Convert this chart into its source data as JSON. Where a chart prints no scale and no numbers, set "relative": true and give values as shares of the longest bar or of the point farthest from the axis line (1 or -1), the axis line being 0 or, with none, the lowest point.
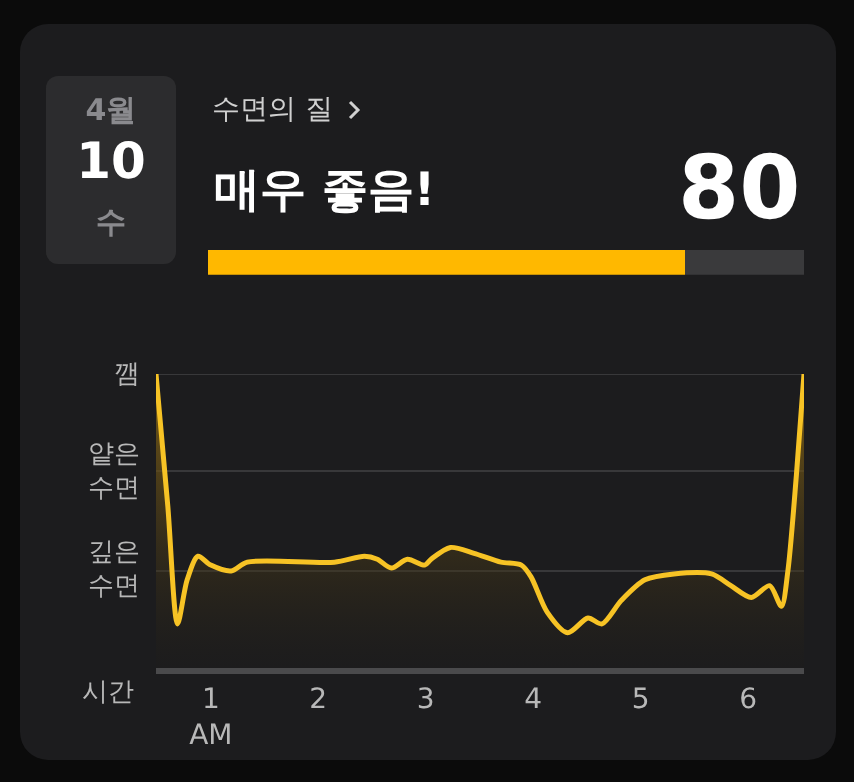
{
  "chart_data": [
    {
      "type": "bar",
      "orientation": "horizontal",
      "stacked": true,
      "title": "매우 좋음!",
      "subtitle": "수면의 질",
      "annotations": [
        "4월",
        "10",
        "수"
      ],
      "categories": [
        null
      ],
      "series": [
        {
          "color": "#ffb800",
          "values": [
            80
          ],
          "value_labels": [
            "80"
          ]
        },
        {
          "color": "#3a3a3c",
          "values": [
            20
          ]
        }
      ],
      "tick_labels": false,
      "legend": false
    },
    {
      "type": "area",
      "color": "#f7c325",
      "x": [
        0.49,
        0.6,
        0.69,
        0.78,
        0.88,
        1.0,
        1.19,
        1.34,
        2.15,
        2.43,
        2.55,
        2.68,
        2.83,
        2.99,
        3.05,
        3.23,
        3.45,
        3.7,
        3.89,
        3.98,
        4.13,
        4.32,
        4.51,
        4.64,
        4.82,
        5.04,
        5.31,
        5.66,
        5.84,
        6.03,
        6.2,
        6.31,
        6.37,
        6.45,
        6.52
      ],
      "values": [
        1.0,
        0.55,
        0.15,
        0.3,
        0.38,
        0.35,
        0.33,
        0.36,
        0.36,
        0.38,
        0.37,
        0.34,
        0.37,
        0.35,
        0.37,
        0.41,
        0.39,
        0.36,
        0.35,
        0.31,
        0.19,
        0.12,
        0.17,
        0.15,
        0.23,
        0.3,
        0.32,
        0.32,
        0.28,
        0.24,
        0.28,
        0.21,
        0.33,
        0.66,
        1.0
      ],
      "relative": true,
      "ref_lines": [
        {
          "axis": "y",
          "value": 1,
          "label": "깸",
          "color": "#38383a"
        },
        {
          "axis": "y",
          "value": 0.67,
          "label": "얕은\n수면",
          "color": "#38383a"
        },
        {
          "axis": "y",
          "value": 0.33,
          "label": "깊은\n수면",
          "color": "#38383a"
        }
      ],
      "xlim": [
        0.49,
        6.52
      ],
      "xticks": [
        {
          "value": 1,
          "label": "1\nAM"
        },
        2,
        3,
        4,
        5,
        6
      ],
      "xlabel": "시간",
      "marker": "none",
      "legend": false
    }
  ]
}
